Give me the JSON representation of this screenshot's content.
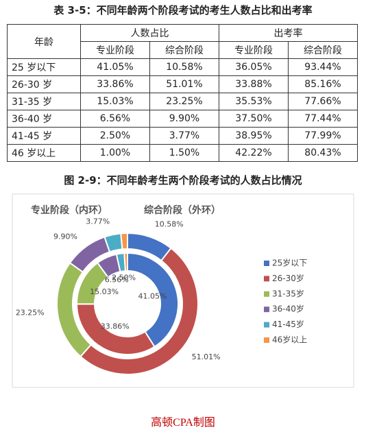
{
  "header": {
    "title": "表 3-5：不同年龄两个阶段考试的考生人数占比和出考率"
  },
  "table": {
    "header": [
      "年龄",
      "人数占比",
      "出考率"
    ],
    "subheader": [
      "专业阶段",
      "综合阶段",
      "专业阶段",
      "综合阶段"
    ],
    "rows": [
      [
        "25 岁以下",
        "41.05%",
        "10.58%",
        "36.05%",
        "93.44%"
      ],
      [
        "26-30 岁",
        "33.86%",
        "51.01%",
        "33.88%",
        "85.16%"
      ],
      [
        "31-35 岁",
        "15.03%",
        "23.25%",
        "35.53%",
        "77.66%"
      ],
      [
        "36-40 岁",
        "6.56%",
        "9.90%",
        "37.50%",
        "77.44%"
      ],
      [
        "41-45 岁",
        "2.50%",
        "3.77%",
        "38.95%",
        "77.99%"
      ],
      [
        "46 岁以上",
        "1.00%",
        "1.50%",
        "42.22%",
        "80.43%"
      ]
    ]
  },
  "figure_caption": "图 2-9：不同年龄考生两个阶段考试的人数占比情况",
  "chart_data": {
    "type": "donut",
    "categories": [
      "25岁以下",
      "26-30岁",
      "31-35岁",
      "36-40岁",
      "41-45岁",
      "46岁以上"
    ],
    "colors": [
      "#4472c4",
      "#c0504d",
      "#9bbb59",
      "#8064a2",
      "#4bacc6",
      "#f79646"
    ],
    "legend": "right",
    "series": [
      {
        "name": "专业阶段（内环）",
        "values": [
          41.05,
          33.86,
          15.03,
          6.56,
          2.5,
          1.0
        ],
        "value_labels": [
          "41.05%",
          "33.86%",
          "15.03%",
          "6.56%",
          "2.50%",
          null
        ]
      },
      {
        "name": "综合阶段（外环）",
        "values": [
          10.58,
          51.01,
          23.25,
          9.9,
          3.77,
          1.5
        ],
        "value_labels": [
          "10.58%",
          "51.01%",
          "23.25%",
          "9.90%",
          "3.77%",
          null
        ]
      }
    ]
  },
  "footer": "高顿CPA制图"
}
